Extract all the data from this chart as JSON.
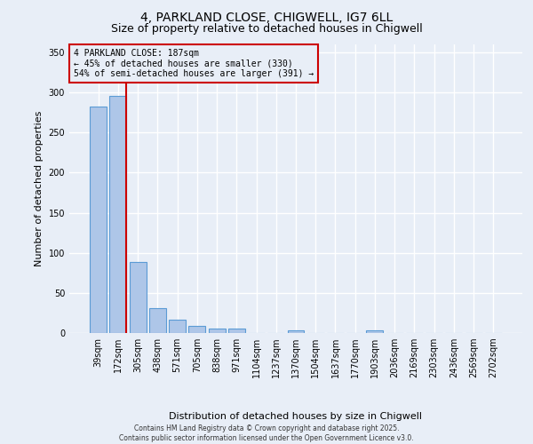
{
  "title1": "4, PARKLAND CLOSE, CHIGWELL, IG7 6LL",
  "title2": "Size of property relative to detached houses in Chigwell",
  "xlabel": "Distribution of detached houses by size in Chigwell",
  "ylabel": "Number of detached properties",
  "categories": [
    "39sqm",
    "172sqm",
    "305sqm",
    "438sqm",
    "571sqm",
    "705sqm",
    "838sqm",
    "971sqm",
    "1104sqm",
    "1237sqm",
    "1370sqm",
    "1504sqm",
    "1637sqm",
    "1770sqm",
    "1903sqm",
    "2036sqm",
    "2169sqm",
    "2303sqm",
    "2436sqm",
    "2569sqm",
    "2702sqm"
  ],
  "values": [
    282,
    296,
    89,
    31,
    17,
    9,
    6,
    6,
    0,
    0,
    3,
    0,
    0,
    0,
    3,
    0,
    0,
    0,
    0,
    0,
    0
  ],
  "bar_color": "#aec6e8",
  "bar_edge_color": "#5b9bd5",
  "bg_color": "#e8eef7",
  "grid_color": "#ffffff",
  "vline_color": "#cc0000",
  "annotation_text": "4 PARKLAND CLOSE: 187sqm\n← 45% of detached houses are smaller (330)\n54% of semi-detached houses are larger (391) →",
  "annotation_box_color": "#cc0000",
  "ylim": [
    0,
    360
  ],
  "yticks": [
    0,
    50,
    100,
    150,
    200,
    250,
    300,
    350
  ],
  "footer": "Contains HM Land Registry data © Crown copyright and database right 2025.\nContains public sector information licensed under the Open Government Licence v3.0.",
  "title_fontsize": 10,
  "subtitle_fontsize": 9,
  "ylabel_fontsize": 8,
  "xlabel_fontsize": 8
}
